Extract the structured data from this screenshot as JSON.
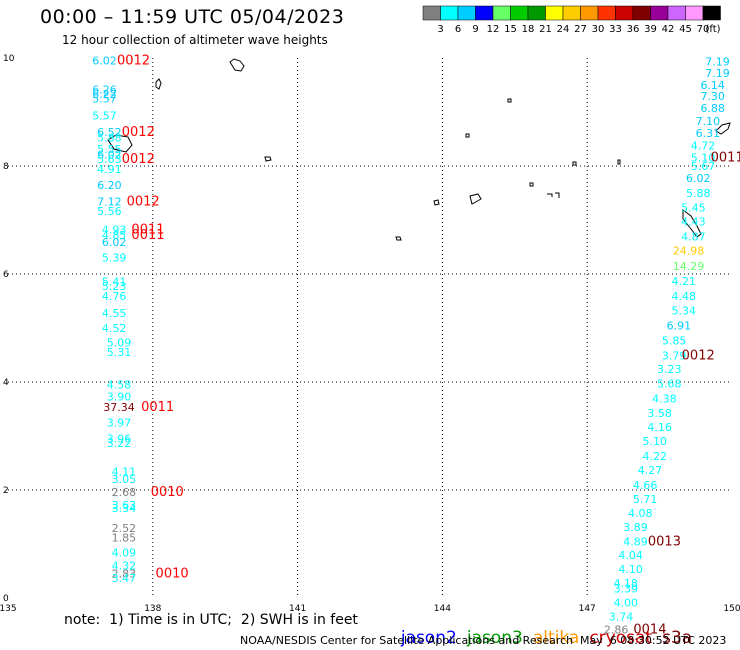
{
  "title": "00:00 – 11:59 UTC 05/04/2023",
  "subtitle": "12 hour collection of altimeter wave heights",
  "colorbar": {
    "labels": [
      "3",
      "6",
      "9",
      "12",
      "15",
      "18",
      "21",
      "24",
      "27",
      "30",
      "33",
      "36",
      "39",
      "42",
      "45",
      "70"
    ],
    "unit": "(ft)",
    "colors": [
      "#808080",
      "#00ffff",
      "#00ccff",
      "#0000ff",
      "#66ff66",
      "#00cc00",
      "#009900",
      "#ffff00",
      "#ffcc00",
      "#ff9900",
      "#ff3300",
      "#cc0000",
      "#800000",
      "#990099",
      "#cc66ff",
      "#ff99ff",
      "#000000"
    ]
  },
  "note": "note:  1) Time is in UTC;  2) SWH is in feet",
  "legend": [
    {
      "name": "jason2",
      "color": "#0000ff"
    },
    {
      "name": "jason3",
      "color": "#009900"
    },
    {
      "name": "altika",
      "color": "#ff9900"
    },
    {
      "name": "cryosat",
      "color": "#cc0000"
    },
    {
      "name": "s3a",
      "color": "#800000"
    }
  ],
  "credit": "NOAA/NESDIS Center for Satellite Applications and Research",
  "credit_date": "May  6 08:30:52 UTC 2023",
  "chart_data": {
    "type": "scatter",
    "xlim": [
      135,
      150
    ],
    "ylim": [
      0,
      10
    ],
    "xticks": [
      "135",
      "138",
      "141",
      "144",
      "147",
      "150"
    ],
    "yticks": [
      "0",
      "2",
      "4",
      "6",
      "8",
      "10"
    ],
    "grid": true,
    "wave_heights": [
      {
        "x": 137.0,
        "y": 9.88,
        "v": "6.02",
        "c": "#00ccff"
      },
      {
        "x": 137.0,
        "y": 9.34,
        "v": "6.26",
        "c": "#00ccff"
      },
      {
        "x": 137.0,
        "y": 9.26,
        "v": "6.22",
        "c": "#00ccff"
      },
      {
        "x": 137.0,
        "y": 9.18,
        "v": "5.57",
        "c": "#00ccff"
      },
      {
        "x": 137.0,
        "y": 8.86,
        "v": "5.57",
        "c": "#00ffff"
      },
      {
        "x": 137.1,
        "y": 8.56,
        "v": "6.52",
        "c": "#00ccff"
      },
      {
        "x": 137.1,
        "y": 8.45,
        "v": "5.88",
        "c": "#00ffff"
      },
      {
        "x": 137.1,
        "y": 8.24,
        "v": "5.55",
        "c": "#00ffff"
      },
      {
        "x": 137.1,
        "y": 8.14,
        "v": "6.02",
        "c": "#00ccff"
      },
      {
        "x": 137.1,
        "y": 8.06,
        "v": "5.63",
        "c": "#00ffff"
      },
      {
        "x": 137.1,
        "y": 7.87,
        "v": "4.91",
        "c": "#00ffff"
      },
      {
        "x": 137.1,
        "y": 7.57,
        "v": "6.20",
        "c": "#00ccff"
      },
      {
        "x": 137.1,
        "y": 7.27,
        "v": "7.12",
        "c": "#00ccff"
      },
      {
        "x": 137.1,
        "y": 7.09,
        "v": "5.56",
        "c": "#00ffff"
      },
      {
        "x": 137.2,
        "y": 6.75,
        "v": "4.93",
        "c": "#00ffff"
      },
      {
        "x": 137.2,
        "y": 6.65,
        "v": "4.85",
        "c": "#00ffff"
      },
      {
        "x": 137.2,
        "y": 6.52,
        "v": "6.02",
        "c": "#00ccff"
      },
      {
        "x": 137.2,
        "y": 6.23,
        "v": "5.39",
        "c": "#00ffff"
      },
      {
        "x": 137.2,
        "y": 5.79,
        "v": "5.41",
        "c": "#00ffff"
      },
      {
        "x": 137.2,
        "y": 5.7,
        "v": "5.23",
        "c": "#00ffff"
      },
      {
        "x": 137.2,
        "y": 5.52,
        "v": "4.76",
        "c": "#00ffff"
      },
      {
        "x": 137.2,
        "y": 5.2,
        "v": "4.55",
        "c": "#00ffff"
      },
      {
        "x": 137.2,
        "y": 4.93,
        "v": "4.52",
        "c": "#00ffff"
      },
      {
        "x": 137.3,
        "y": 4.66,
        "v": "5.09",
        "c": "#00ffff"
      },
      {
        "x": 137.3,
        "y": 4.48,
        "v": "5.31",
        "c": "#00ffff"
      },
      {
        "x": 137.3,
        "y": 3.88,
        "v": "4.58",
        "c": "#00ffff"
      },
      {
        "x": 137.3,
        "y": 3.66,
        "v": "3.90",
        "c": "#00ffff"
      },
      {
        "x": 137.3,
        "y": 3.46,
        "v": "37.34",
        "c": "#800000"
      },
      {
        "x": 137.3,
        "y": 3.18,
        "v": "3.97",
        "c": "#00ffff"
      },
      {
        "x": 137.3,
        "y": 2.88,
        "v": "3.96",
        "c": "#00ffff"
      },
      {
        "x": 137.3,
        "y": 2.8,
        "v": "3.22",
        "c": "#00ffff"
      },
      {
        "x": 137.4,
        "y": 2.27,
        "v": "4.11",
        "c": "#00ffff"
      },
      {
        "x": 137.4,
        "y": 2.13,
        "v": "3.05",
        "c": "#00ffff"
      },
      {
        "x": 137.4,
        "y": 1.89,
        "v": "2.68",
        "c": "#808080"
      },
      {
        "x": 137.4,
        "y": 1.65,
        "v": "3.63",
        "c": "#00ffff"
      },
      {
        "x": 137.4,
        "y": 1.59,
        "v": "3.34",
        "c": "#00ffff"
      },
      {
        "x": 137.4,
        "y": 1.22,
        "v": "2.52",
        "c": "#808080"
      },
      {
        "x": 137.4,
        "y": 1.05,
        "v": "1.85",
        "c": "#808080"
      },
      {
        "x": 137.4,
        "y": 0.77,
        "v": "4.09",
        "c": "#00ffff"
      },
      {
        "x": 137.4,
        "y": 0.53,
        "v": "4.32",
        "c": "#00ffff"
      },
      {
        "x": 137.4,
        "y": 0.38,
        "v": "2.83",
        "c": "#808080"
      },
      {
        "x": 137.4,
        "y": 0.3,
        "v": "3.47",
        "c": "#00ffff"
      },
      {
        "x": 149.7,
        "y": 9.86,
        "v": "7.19",
        "c": "#00ccff"
      },
      {
        "x": 149.7,
        "y": 9.65,
        "v": "7.19",
        "c": "#00ccff"
      },
      {
        "x": 149.6,
        "y": 9.43,
        "v": "6.14",
        "c": "#00ccff"
      },
      {
        "x": 149.6,
        "y": 9.22,
        "v": "7.30",
        "c": "#00ccff"
      },
      {
        "x": 149.6,
        "y": 9.0,
        "v": "6.88",
        "c": "#00ccff"
      },
      {
        "x": 149.5,
        "y": 8.76,
        "v": "7.10",
        "c": "#00ccff"
      },
      {
        "x": 149.5,
        "y": 8.54,
        "v": "6.31",
        "c": "#00ccff"
      },
      {
        "x": 149.4,
        "y": 8.31,
        "v": "4.72",
        "c": "#00ffff"
      },
      {
        "x": 149.4,
        "y": 8.08,
        "v": "5.10",
        "c": "#00ffff"
      },
      {
        "x": 149.4,
        "y": 7.93,
        "v": "5.67",
        "c": "#00ffff"
      },
      {
        "x": 149.3,
        "y": 7.7,
        "v": "6.02",
        "c": "#00ccff"
      },
      {
        "x": 149.3,
        "y": 7.43,
        "v": "5.88",
        "c": "#00ffff"
      },
      {
        "x": 149.2,
        "y": 7.16,
        "v": "5.45",
        "c": "#00ffff"
      },
      {
        "x": 149.2,
        "y": 6.9,
        "v": "4.43",
        "c": "#00ffff"
      },
      {
        "x": 149.2,
        "y": 6.62,
        "v": "4.87",
        "c": "#00ffff"
      },
      {
        "x": 149.1,
        "y": 6.36,
        "v": "24.98",
        "c": "#ffcc00"
      },
      {
        "x": 149.1,
        "y": 6.07,
        "v": "14.29",
        "c": "#66ff66"
      },
      {
        "x": 149.0,
        "y": 5.8,
        "v": "4.21",
        "c": "#00ffff"
      },
      {
        "x": 149.0,
        "y": 5.52,
        "v": "4.48",
        "c": "#00ffff"
      },
      {
        "x": 149.0,
        "y": 5.25,
        "v": "5.34",
        "c": "#00ffff"
      },
      {
        "x": 148.9,
        "y": 4.97,
        "v": "6.91",
        "c": "#00ccff"
      },
      {
        "x": 148.8,
        "y": 4.69,
        "v": "5.85",
        "c": "#00ffff"
      },
      {
        "x": 148.8,
        "y": 4.42,
        "v": "3.79",
        "c": "#00ffff"
      },
      {
        "x": 148.7,
        "y": 4.17,
        "v": "3.23",
        "c": "#00ffff"
      },
      {
        "x": 148.7,
        "y": 3.9,
        "v": "5.68",
        "c": "#00ffff"
      },
      {
        "x": 148.6,
        "y": 3.62,
        "v": "4.38",
        "c": "#00ffff"
      },
      {
        "x": 148.5,
        "y": 3.35,
        "v": "3.58",
        "c": "#00ffff"
      },
      {
        "x": 148.5,
        "y": 3.09,
        "v": "4.16",
        "c": "#00ffff"
      },
      {
        "x": 148.4,
        "y": 2.83,
        "v": "5.10",
        "c": "#00ffff"
      },
      {
        "x": 148.4,
        "y": 2.56,
        "v": "4.22",
        "c": "#00ffff"
      },
      {
        "x": 148.3,
        "y": 2.3,
        "v": "4.27",
        "c": "#00ffff"
      },
      {
        "x": 148.2,
        "y": 2.02,
        "v": "4.66",
        "c": "#00ffff"
      },
      {
        "x": 148.2,
        "y": 1.76,
        "v": "5.71",
        "c": "#00ffff"
      },
      {
        "x": 148.1,
        "y": 1.5,
        "v": "4.08",
        "c": "#00ffff"
      },
      {
        "x": 148.0,
        "y": 1.24,
        "v": "3.89",
        "c": "#00ffff"
      },
      {
        "x": 148.0,
        "y": 0.97,
        "v": "4.89",
        "c": "#00ffff"
      },
      {
        "x": 147.9,
        "y": 0.72,
        "v": "4.04",
        "c": "#00ffff"
      },
      {
        "x": 147.9,
        "y": 0.46,
        "v": "4.10",
        "c": "#00ffff"
      },
      {
        "x": 147.8,
        "y": 0.2,
        "v": "4.18",
        "c": "#00ffff"
      },
      {
        "x": 147.8,
        "y": 0.1,
        "v": "3.39",
        "c": "#00ffff"
      },
      {
        "x": 147.8,
        "y": -0.16,
        "v": "4.00",
        "c": "#00ffff"
      },
      {
        "x": 147.7,
        "y": -0.42,
        "v": "3.74",
        "c": "#00ffff"
      },
      {
        "x": 147.6,
        "y": -0.66,
        "v": "2.86",
        "c": "#808080"
      }
    ],
    "time_labels": [
      {
        "x": 137.6,
        "y": 9.88,
        "t": "0012",
        "c": "#ff0000"
      },
      {
        "x": 137.7,
        "y": 8.56,
        "t": "0012",
        "c": "#ff0000"
      },
      {
        "x": 137.7,
        "y": 8.06,
        "t": "0012",
        "c": "#ff0000"
      },
      {
        "x": 137.8,
        "y": 7.27,
        "t": "0012",
        "c": "#ff0000"
      },
      {
        "x": 137.9,
        "y": 6.75,
        "t": "0011",
        "c": "#ff0000"
      },
      {
        "x": 137.9,
        "y": 6.65,
        "t": "0011",
        "c": "#ff0000"
      },
      {
        "x": 138.1,
        "y": 3.46,
        "t": "0011",
        "c": "#ff0000"
      },
      {
        "x": 138.3,
        "y": 1.89,
        "t": "0010",
        "c": "#ff0000"
      },
      {
        "x": 138.4,
        "y": 0.38,
        "t": "0010",
        "c": "#ff0000"
      },
      {
        "x": 149.9,
        "y": 8.08,
        "t": "0011",
        "c": "#800000"
      },
      {
        "x": 149.3,
        "y": 4.42,
        "t": "0012",
        "c": "#800000"
      },
      {
        "x": 148.6,
        "y": 0.97,
        "t": "0013",
        "c": "#800000"
      },
      {
        "x": 148.3,
        "y": -0.66,
        "t": "0014",
        "c": "#800000"
      }
    ]
  }
}
